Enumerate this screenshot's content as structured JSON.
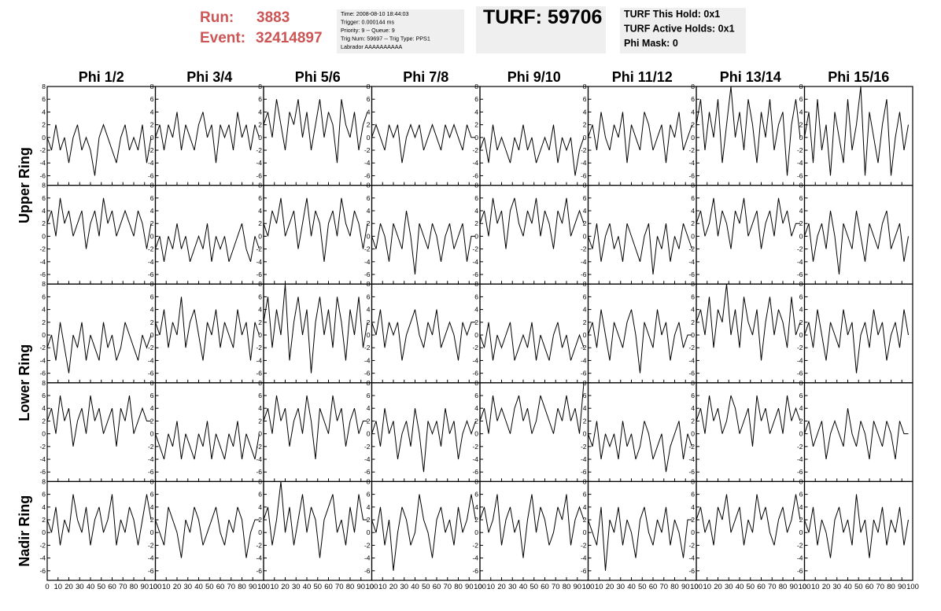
{
  "header": {
    "run_label": "Run:",
    "run": "3883",
    "event_label": "Event:",
    "event": "32414897",
    "info": [
      "Time: 2008-08-10 18:44:03",
      "Trigger: 0.000144 ms",
      "Priority: 9 -- Queue: 9",
      "Trig Num: 59697 -- Trig Type: PPS1",
      "Labrador AAAAAAAAAA"
    ],
    "turf": "TURF: 59706",
    "status": [
      "TURF This Hold: 0x1",
      "TURF Active Holds: 0x1",
      "Phi Mask: 0"
    ]
  },
  "chart_data": {
    "type": "waveform-grid",
    "columns": [
      "Phi 1/2",
      "Phi 3/4",
      "Phi 5/6",
      "Phi 7/8",
      "Phi 9/10",
      "Phi 11/12",
      "Phi 13/14",
      "Phi 15/16"
    ],
    "row_labels": [
      "Upper Ring",
      "Lower Ring",
      "Nadir Ring"
    ],
    "color": "#000000",
    "xlim": [
      0,
      100
    ],
    "xticks": [
      0,
      10,
      20,
      30,
      40,
      50,
      60,
      70,
      80,
      90,
      100
    ],
    "ylim": [
      -7.5,
      8
    ],
    "yticks": [
      -6,
      -4,
      -2,
      0,
      2,
      4,
      6,
      8
    ],
    "x": [
      0,
      4,
      8,
      12,
      16,
      20,
      24,
      28,
      32,
      36,
      40,
      44,
      48,
      52,
      56,
      60,
      64,
      68,
      72,
      76,
      80,
      84,
      88,
      92,
      96
    ],
    "panels": [
      {
        "values": [
          0,
          -2,
          2,
          -2,
          0,
          -4,
          0,
          2,
          -2,
          0,
          -2,
          -6,
          0,
          2,
          0,
          -2,
          -4,
          0,
          2,
          -2,
          0,
          -2,
          2,
          -4,
          0
        ]
      },
      {
        "values": [
          0,
          2,
          -2,
          2,
          0,
          4,
          -2,
          2,
          0,
          -2,
          2,
          4,
          0,
          2,
          -4,
          2,
          0,
          2,
          -2,
          4,
          0,
          2,
          -2,
          2,
          0
        ]
      },
      {
        "values": [
          2,
          4,
          0,
          6,
          2,
          -2,
          4,
          2,
          6,
          0,
          4,
          -2,
          2,
          6,
          0,
          4,
          2,
          -4,
          6,
          2,
          0,
          4,
          -2,
          2,
          4
        ]
      },
      {
        "values": [
          0,
          2,
          0,
          -2,
          2,
          0,
          2,
          -4,
          0,
          2,
          0,
          2,
          -2,
          0,
          2,
          0,
          -2,
          2,
          0,
          2,
          0,
          -2,
          2,
          0,
          0
        ]
      },
      {
        "values": [
          -2,
          0,
          -4,
          2,
          -2,
          0,
          -2,
          -4,
          0,
          -2,
          2,
          -2,
          0,
          -4,
          -2,
          0,
          -2,
          2,
          -4,
          0,
          -2,
          0,
          -6,
          -2,
          0
        ]
      },
      {
        "values": [
          0,
          2,
          -2,
          4,
          0,
          -2,
          2,
          0,
          4,
          -4,
          2,
          0,
          -2,
          4,
          2,
          -2,
          0,
          2,
          -4,
          2,
          0,
          4,
          -2,
          0,
          2
        ]
      },
      {
        "values": [
          2,
          6,
          -2,
          4,
          0,
          6,
          -4,
          2,
          8,
          0,
          4,
          -2,
          6,
          2,
          -4,
          4,
          0,
          6,
          -2,
          2,
          4,
          -6,
          2,
          6,
          0
        ]
      },
      {
        "values": [
          0,
          4,
          -4,
          6,
          -2,
          2,
          -6,
          4,
          0,
          -4,
          6,
          -2,
          2,
          8,
          -6,
          4,
          0,
          -4,
          2,
          6,
          -6,
          0,
          4,
          -2,
          2
        ]
      },
      {
        "values": [
          2,
          4,
          0,
          6,
          2,
          4,
          0,
          2,
          4,
          -2,
          2,
          4,
          0,
          6,
          2,
          4,
          0,
          2,
          4,
          2,
          0,
          4,
          2,
          -2,
          2
        ]
      },
      {
        "values": [
          -2,
          0,
          -4,
          0,
          -2,
          2,
          -2,
          0,
          -4,
          -2,
          0,
          -2,
          2,
          -4,
          0,
          -2,
          0,
          -4,
          -2,
          0,
          2,
          -2,
          -4,
          0,
          -2
        ]
      },
      {
        "values": [
          2,
          0,
          4,
          2,
          6,
          0,
          2,
          4,
          -2,
          2,
          6,
          0,
          4,
          2,
          -4,
          2,
          4,
          0,
          6,
          2,
          0,
          4,
          2,
          -2,
          2
        ]
      },
      {
        "values": [
          0,
          -2,
          2,
          0,
          -4,
          2,
          0,
          -2,
          4,
          0,
          -6,
          2,
          0,
          -2,
          2,
          0,
          -4,
          0,
          2,
          -2,
          0,
          2,
          -4,
          0,
          0
        ]
      },
      {
        "values": [
          2,
          4,
          0,
          6,
          2,
          4,
          -2,
          4,
          6,
          2,
          0,
          4,
          2,
          6,
          0,
          4,
          2,
          -2,
          4,
          2,
          6,
          0,
          2,
          4,
          2
        ]
      },
      {
        "values": [
          0,
          -2,
          2,
          -4,
          0,
          2,
          -2,
          0,
          -4,
          2,
          0,
          -2,
          -4,
          0,
          2,
          -6,
          0,
          -2,
          2,
          -4,
          0,
          -2,
          2,
          0,
          -2
        ]
      },
      {
        "values": [
          2,
          4,
          0,
          2,
          6,
          0,
          4,
          2,
          -2,
          4,
          2,
          6,
          0,
          2,
          4,
          -2,
          2,
          4,
          0,
          6,
          2,
          4,
          0,
          2,
          2
        ]
      },
      {
        "values": [
          0,
          2,
          -4,
          0,
          2,
          -2,
          4,
          0,
          -6,
          2,
          0,
          -2,
          4,
          0,
          -4,
          2,
          0,
          -2,
          2,
          4,
          -2,
          0,
          2,
          -4,
          0
        ]
      },
      {
        "values": [
          -2,
          0,
          -4,
          2,
          -2,
          -6,
          0,
          -2,
          2,
          -4,
          0,
          -2,
          -4,
          2,
          -2,
          0,
          -4,
          -2,
          2,
          0,
          -2,
          -4,
          0,
          -2,
          0
        ]
      },
      {
        "values": [
          2,
          0,
          4,
          -2,
          2,
          0,
          6,
          -2,
          2,
          4,
          0,
          -4,
          2,
          0,
          4,
          -2,
          2,
          0,
          -2,
          4,
          0,
          2,
          -4,
          2,
          0
        ]
      },
      {
        "values": [
          2,
          6,
          -2,
          4,
          0,
          8,
          -4,
          2,
          6,
          0,
          4,
          -6,
          2,
          6,
          0,
          4,
          -2,
          6,
          2,
          -4,
          4,
          0,
          6,
          -2,
          2
        ]
      },
      {
        "values": [
          2,
          0,
          4,
          -2,
          2,
          0,
          2,
          -4,
          0,
          2,
          4,
          0,
          -2,
          2,
          0,
          4,
          -2,
          0,
          2,
          0,
          -4,
          2,
          0,
          2,
          2
        ]
      },
      {
        "values": [
          0,
          -2,
          2,
          -4,
          0,
          -2,
          0,
          2,
          -4,
          -2,
          0,
          -2,
          2,
          -4,
          0,
          -2,
          -4,
          0,
          2,
          -2,
          0,
          -4,
          -2,
          0,
          -2
        ]
      },
      {
        "values": [
          0,
          2,
          -2,
          4,
          0,
          -4,
          2,
          0,
          -2,
          2,
          4,
          0,
          -6,
          2,
          0,
          -2,
          4,
          0,
          2,
          -4,
          0,
          2,
          -2,
          0,
          0
        ]
      },
      {
        "values": [
          2,
          4,
          0,
          6,
          -2,
          4,
          2,
          8,
          0,
          4,
          -2,
          6,
          2,
          0,
          4,
          -4,
          2,
          6,
          0,
          4,
          2,
          -2,
          6,
          0,
          2
        ]
      },
      {
        "values": [
          0,
          2,
          -2,
          4,
          0,
          -4,
          2,
          0,
          -2,
          4,
          0,
          2,
          -6,
          0,
          2,
          -2,
          4,
          0,
          2,
          -4,
          0,
          2,
          -2,
          4,
          0
        ]
      },
      {
        "values": [
          2,
          4,
          0,
          6,
          2,
          4,
          -2,
          2,
          4,
          0,
          6,
          2,
          4,
          0,
          2,
          4,
          -2,
          4,
          2,
          6,
          0,
          2,
          4,
          2,
          2
        ]
      },
      {
        "values": [
          0,
          -2,
          -4,
          0,
          -2,
          2,
          -4,
          0,
          -2,
          -4,
          0,
          -2,
          2,
          -4,
          0,
          -2,
          -4,
          0,
          -2,
          2,
          -4,
          0,
          -2,
          -4,
          0
        ]
      },
      {
        "values": [
          2,
          4,
          0,
          6,
          2,
          4,
          -2,
          2,
          4,
          0,
          6,
          2,
          -4,
          4,
          2,
          0,
          6,
          2,
          4,
          -2,
          2,
          4,
          0,
          2,
          2
        ]
      },
      {
        "values": [
          0,
          2,
          -2,
          4,
          0,
          2,
          -4,
          0,
          2,
          -2,
          4,
          0,
          -6,
          2,
          0,
          2,
          -2,
          4,
          0,
          2,
          -4,
          0,
          2,
          0,
          2
        ]
      },
      {
        "values": [
          2,
          4,
          0,
          6,
          2,
          4,
          2,
          0,
          4,
          6,
          2,
          4,
          0,
          2,
          6,
          4,
          2,
          0,
          4,
          2,
          6,
          2,
          4,
          0,
          8
        ]
      },
      {
        "values": [
          0,
          -2,
          2,
          -4,
          0,
          -2,
          0,
          -4,
          2,
          -2,
          0,
          -4,
          -2,
          2,
          0,
          -4,
          -2,
          0,
          -6,
          -2,
          0,
          2,
          -4,
          0,
          -2
        ]
      },
      {
        "values": [
          2,
          4,
          0,
          6,
          2,
          4,
          0,
          2,
          6,
          4,
          0,
          2,
          4,
          -2,
          6,
          2,
          4,
          0,
          2,
          4,
          0,
          6,
          2,
          4,
          2
        ]
      },
      {
        "values": [
          0,
          2,
          -2,
          0,
          2,
          -4,
          0,
          2,
          0,
          -2,
          4,
          0,
          -2,
          2,
          0,
          -4,
          2,
          0,
          -2,
          2,
          0,
          -4,
          2,
          0,
          0
        ]
      },
      {
        "values": [
          2,
          0,
          4,
          -2,
          2,
          0,
          6,
          2,
          0,
          4,
          -2,
          2,
          4,
          0,
          2,
          6,
          -2,
          2,
          0,
          4,
          2,
          -2,
          2,
          6,
          2
        ]
      },
      {
        "values": [
          2,
          0,
          -2,
          4,
          2,
          0,
          -4,
          2,
          0,
          4,
          2,
          -2,
          0,
          2,
          4,
          0,
          -2,
          2,
          0,
          4,
          2,
          -4,
          0,
          2,
          2
        ]
      },
      {
        "values": [
          2,
          4,
          -2,
          2,
          8,
          0,
          4,
          -2,
          2,
          6,
          0,
          4,
          2,
          -4,
          2,
          4,
          6,
          0,
          2,
          -2,
          4,
          0,
          6,
          2,
          2
        ]
      },
      {
        "values": [
          2,
          0,
          4,
          -2,
          2,
          -6,
          0,
          4,
          2,
          -2,
          0,
          6,
          2,
          0,
          -4,
          2,
          4,
          0,
          2,
          -2,
          4,
          0,
          2,
          6,
          2
        ]
      },
      {
        "values": [
          2,
          4,
          0,
          2,
          6,
          -2,
          2,
          4,
          0,
          2,
          -4,
          2,
          6,
          0,
          4,
          2,
          -2,
          0,
          4,
          2,
          6,
          -2,
          2,
          4,
          2
        ]
      },
      {
        "values": [
          2,
          0,
          -2,
          4,
          -6,
          2,
          0,
          4,
          -2,
          2,
          0,
          -4,
          2,
          4,
          0,
          -2,
          2,
          0,
          4,
          -2,
          2,
          0,
          -4,
          2,
          2
        ]
      },
      {
        "values": [
          2,
          4,
          0,
          2,
          -2,
          4,
          2,
          6,
          0,
          2,
          4,
          -2,
          2,
          0,
          6,
          2,
          4,
          0,
          -2,
          2,
          4,
          0,
          2,
          6,
          2
        ]
      },
      {
        "values": [
          2,
          0,
          4,
          -2,
          2,
          0,
          -4,
          2,
          4,
          0,
          2,
          -2,
          6,
          0,
          2,
          -4,
          2,
          0,
          4,
          -2,
          2,
          0,
          4,
          -2,
          2
        ]
      }
    ]
  }
}
